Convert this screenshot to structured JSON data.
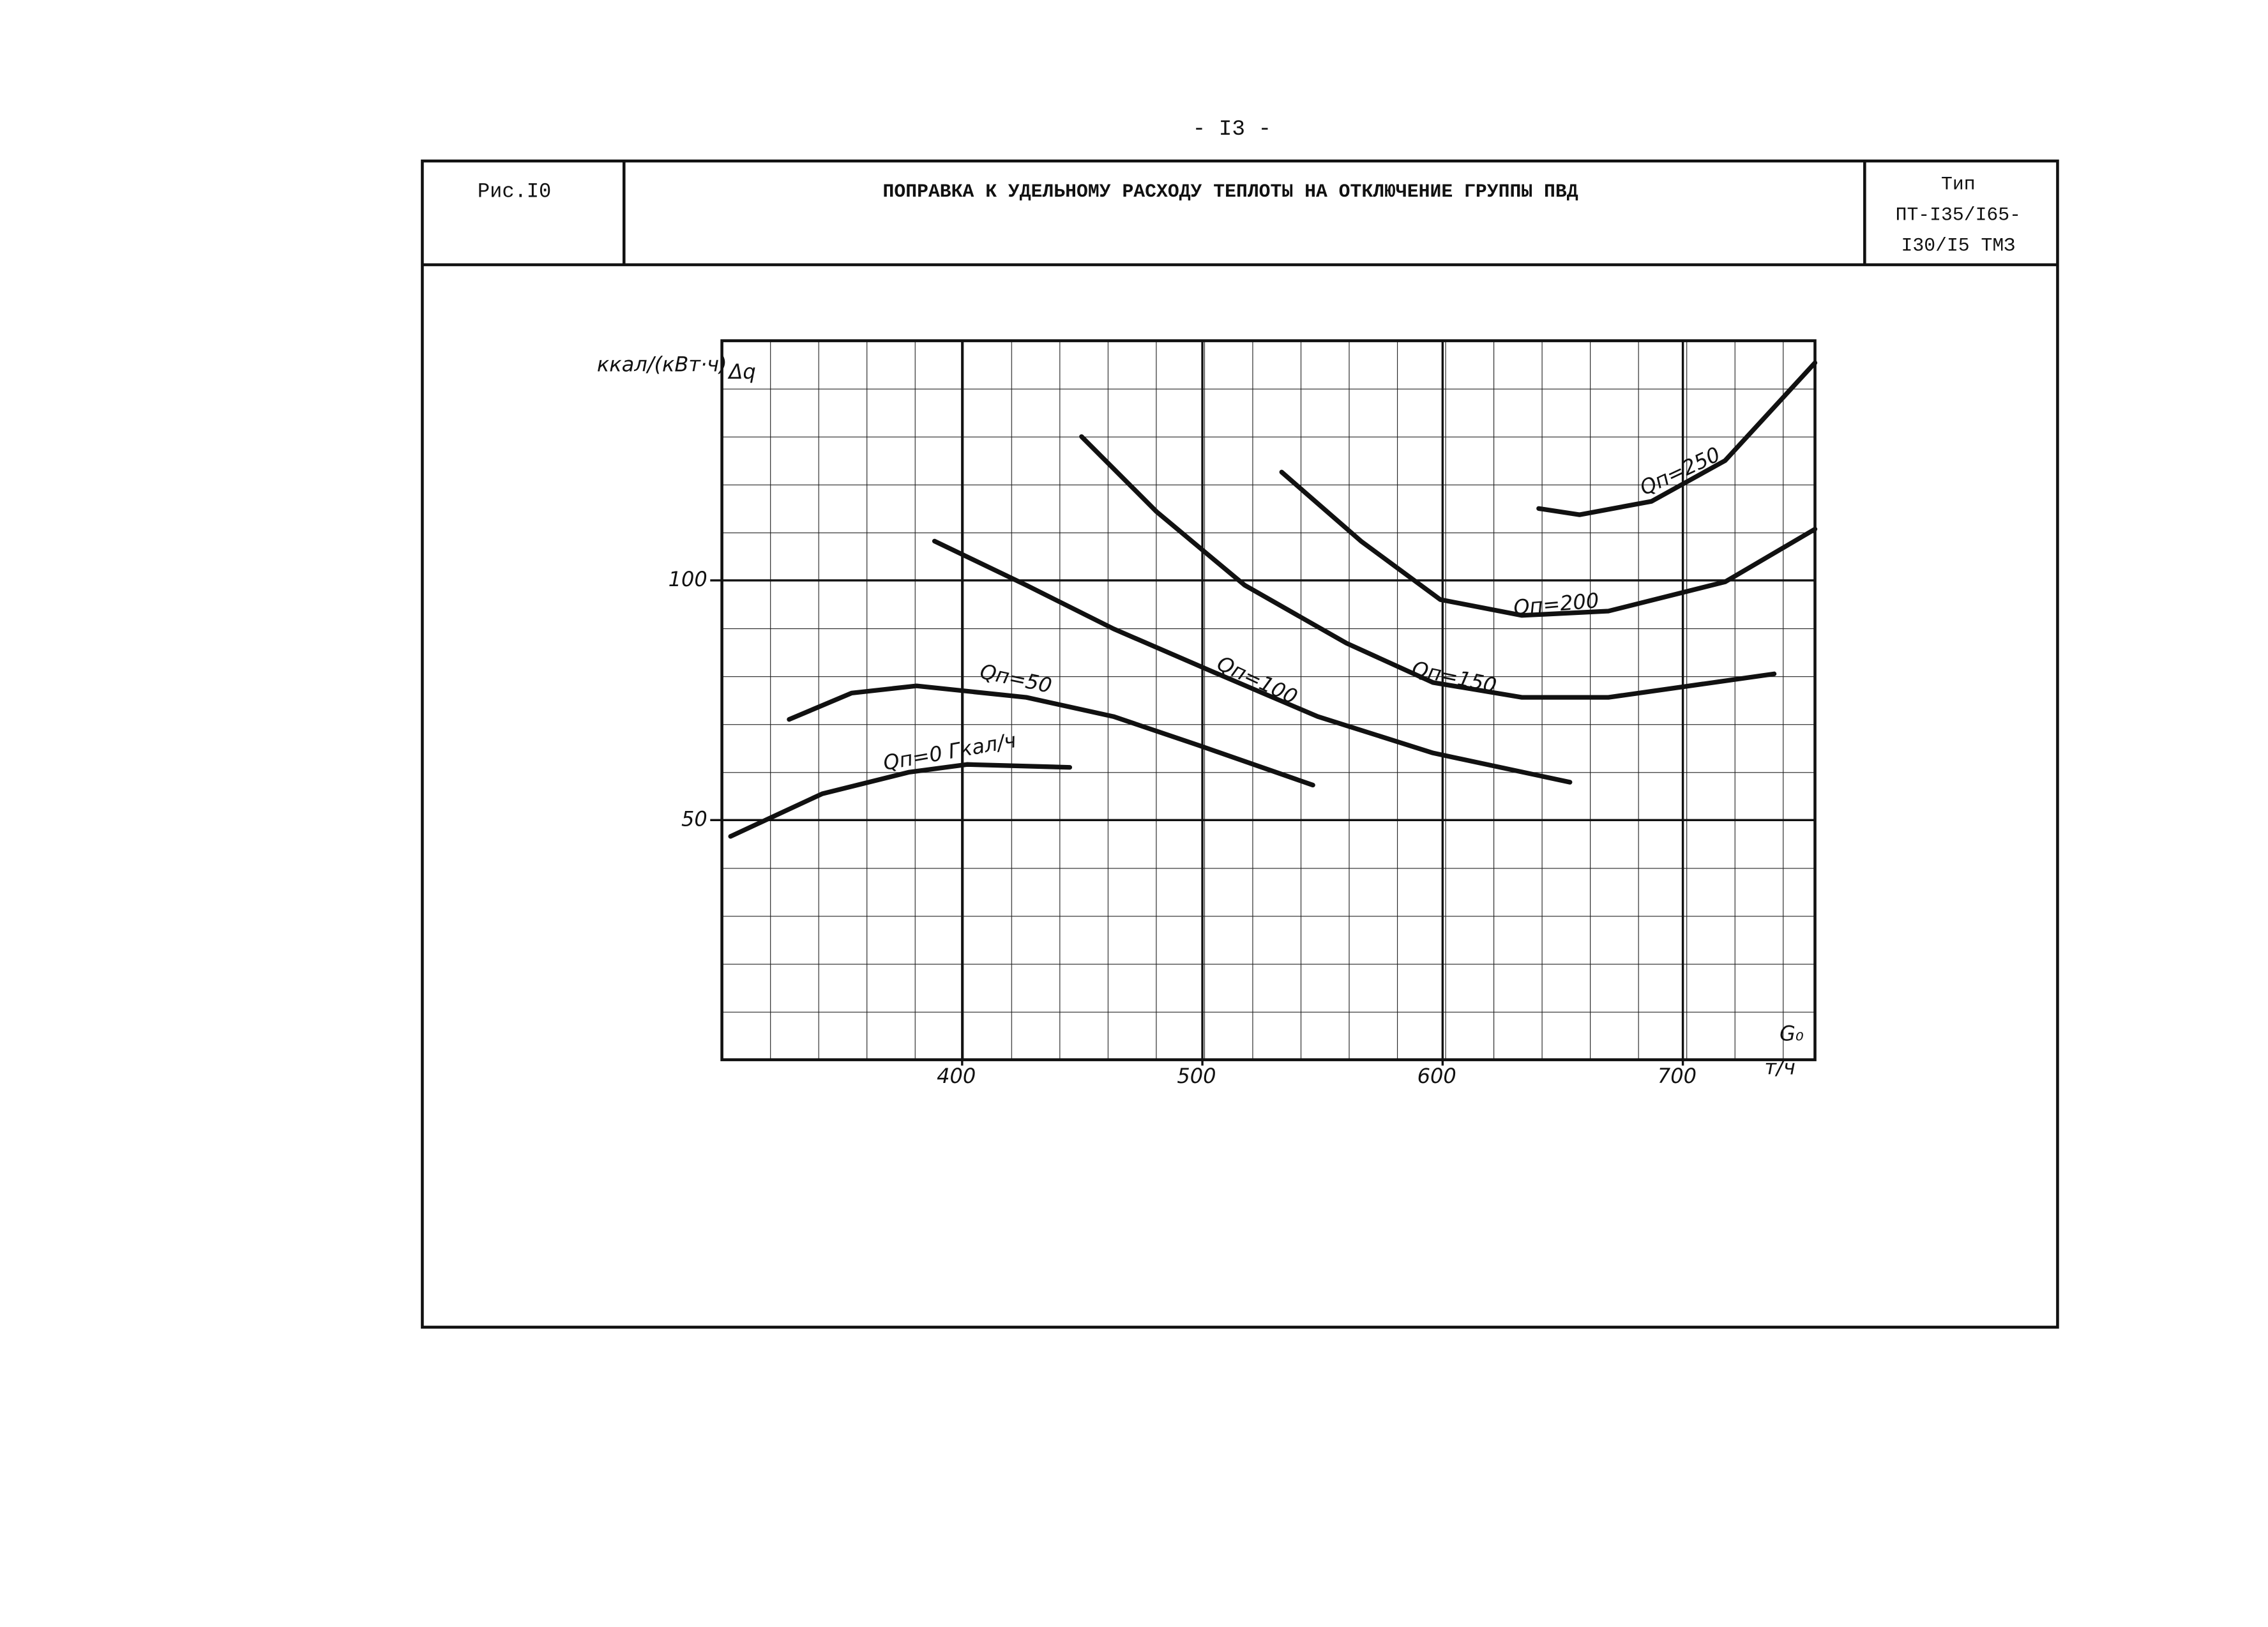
{
  "page_number": "- I3 -",
  "header": {
    "figure": "Рис.I0",
    "title": "ПОПРАВКА К УДЕЛЬНОМУ РАСХОДУ ТЕПЛОТЫ НА ОТКЛЮЧЕНИЕ ГРУППЫ ПВД",
    "type_lines": [
      "Тип",
      "ПТ-I35/I65-",
      "I30/I5  ТМЗ"
    ]
  },
  "chart_data": {
    "type": "line",
    "y_label_units": "ккал/(кВт·ч)",
    "y_label": "Δq",
    "x_label": "G₀",
    "x_units": "т/ч",
    "xlim": [
      300,
      755
    ],
    "ylim": [
      0,
      150
    ],
    "xticks": [
      400,
      500,
      600,
      700
    ],
    "yticks": [
      50,
      100
    ],
    "grid": true,
    "series": [
      {
        "name": "Qп=0 Гкал/ч",
        "color": "#111111",
        "x": [
          303.6,
          341.8,
          378,
          402,
          444.8
        ],
        "values": [
          46.6,
          55.5,
          60,
          61.6,
          61
        ]
      },
      {
        "name": "Qп=50",
        "color": "#111111",
        "x": [
          328,
          354,
          381,
          426.7,
          463,
          499,
          546
        ],
        "values": [
          71,
          76.5,
          78,
          75.6,
          71.6,
          65.5,
          57.3
        ]
      },
      {
        "name": "Qп=100",
        "color": "#111111",
        "x": [
          388.5,
          426.7,
          463,
          505,
          548,
          596,
          653
        ],
        "values": [
          108.2,
          99,
          89.9,
          80.8,
          71.6,
          64,
          57.9
        ]
      },
      {
        "name": "Qп=150",
        "color": "#111111",
        "x": [
          449.7,
          481,
          517.6,
          560,
          596,
          633,
          669,
          738
        ],
        "values": [
          130,
          114.3,
          99,
          86.9,
          78.7,
          75.6,
          75.6,
          80.5
        ]
      },
      {
        "name": "Qп=200",
        "color": "#111111",
        "x": [
          533,
          566,
          599,
          633,
          669,
          717.6,
          755
        ],
        "values": [
          122.6,
          108.2,
          96,
          92.7,
          93.6,
          99.7,
          110.7
        ]
      },
      {
        "name": "Qп=250",
        "color": "#111111",
        "x": [
          640,
          657,
          687,
          717.6,
          755
        ],
        "values": [
          115,
          113.7,
          116.5,
          125,
          145.4
        ]
      }
    ]
  }
}
